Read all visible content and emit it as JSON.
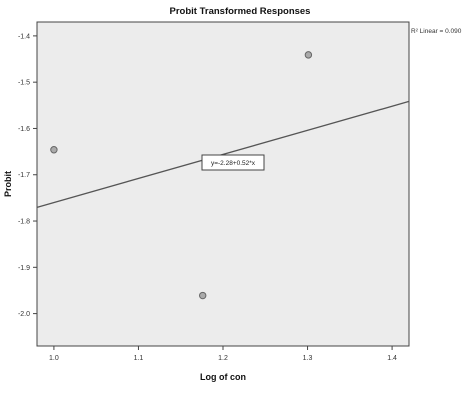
{
  "chart_data": {
    "type": "scatter",
    "title": "Probit Transformed Responses",
    "xlabel": "Log of con",
    "ylabel": "Probit",
    "xlim": [
      0.98,
      1.42
    ],
    "ylim": [
      -2.07,
      -1.37
    ],
    "x_ticks": [
      1.0,
      1.1,
      1.2,
      1.3,
      1.4
    ],
    "x_tick_labels": [
      "1.0",
      "1.1",
      "1.2",
      "1.3",
      "1.4"
    ],
    "y_ticks": [
      -1.4,
      -1.5,
      -1.6,
      -1.7,
      -1.8,
      -1.9,
      -2.0
    ],
    "y_tick_labels": [
      "-1.4",
      "-1.5",
      "-1.6",
      "-1.7",
      "-1.8",
      "-1.9",
      "-2.0"
    ],
    "points": [
      {
        "x": 1.0,
        "y": -1.646
      },
      {
        "x": 1.176,
        "y": -1.961
      },
      {
        "x": 1.301,
        "y": -1.441
      }
    ],
    "fit_line": {
      "intercept": -2.28,
      "slope": 0.52
    },
    "fit_equation": "y=-2.28+0.52*x",
    "r2_label": "R² Linear = 0.090",
    "grid": false,
    "legend_position": "top-right",
    "colors": {
      "plot_background": "#ececec",
      "point_fill": "#aaaaaa",
      "point_stroke": "#666666",
      "fit_line": "#555555",
      "axis": "#444444"
    }
  }
}
